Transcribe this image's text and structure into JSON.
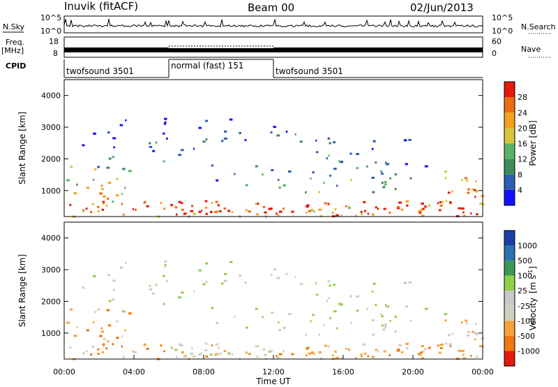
{
  "header": {
    "station": "Inuvik (fitACF)",
    "beam": "Beam 00",
    "date": "02/Jun/2013"
  },
  "colors": {
    "power": [
      "#1010ff",
      "#2e5fb0",
      "#3f8a58",
      "#5cb264",
      "#d8c53a",
      "#f2a21e",
      "#ef6b10",
      "#e41a0e"
    ],
    "velocity": [
      "#e41a0e",
      "#f2780e",
      "#f6a23a",
      "#cfcfbd",
      "#c8c8c8",
      "#8fd24a",
      "#3a9a55",
      "#2e6fae",
      "#1b3fa8"
    ]
  },
  "chart_data": [
    {
      "type": "line",
      "title": "",
      "labels": {
        "left": "N.Sky",
        "right": "N.Search"
      },
      "y_ticks_left": [
        "10^5",
        "10^0"
      ],
      "y_ticks_right": [
        "10^5",
        "10^0"
      ],
      "description_series": [
        {
          "name": "N.Sky",
          "values": []
        }
      ]
    },
    {
      "type": "line",
      "labels": {
        "left": "Freq.",
        "left_unit": "[MHz]",
        "right": "Nave"
      },
      "y_ticks_left": [
        "18",
        "8"
      ],
      "y_ticks_right": [
        "60",
        "0"
      ]
    },
    {
      "type": "table",
      "label": "CPID",
      "segments": [
        {
          "name": "twofsound 3501",
          "start_hour": 0,
          "end_hour": 6
        },
        {
          "name": "normal (fast) 151",
          "start_hour": 6,
          "end_hour": 12
        },
        {
          "name": "twofsound 3501",
          "start_hour": 12,
          "end_hour": 24
        }
      ]
    },
    {
      "type": "heatmap",
      "ylabel": "Slant Range [km]",
      "y_ticks": [
        "4000",
        "3000",
        "2000",
        "1000"
      ],
      "ylim": [
        180,
        4500
      ],
      "colorbar": {
        "label": "Power [dB]",
        "ticks": [
          "28",
          "24",
          "20",
          "16",
          "12",
          "8",
          "4"
        ],
        "range": [
          0,
          32
        ]
      }
    },
    {
      "type": "heatmap",
      "ylabel": "Slant Range [km]",
      "y_ticks": [
        "4000",
        "3000",
        "2000",
        "1000"
      ],
      "ylim": [
        180,
        4500
      ],
      "xlabel": "Time UT",
      "x_ticks": [
        "00:00",
        "04:00",
        "08:00",
        "12:00",
        "16:00",
        "20:00",
        "00:00"
      ],
      "xlim_hours": [
        0,
        24
      ],
      "colorbar": {
        "label": "Velocity",
        "unit": "[m s",
        "unit_sup": "-1",
        "unit_end": "]",
        "ticks": [
          "1000",
          "500",
          "100",
          "25",
          "-25",
          "-100",
          "-500",
          "-1000"
        ]
      }
    }
  ]
}
